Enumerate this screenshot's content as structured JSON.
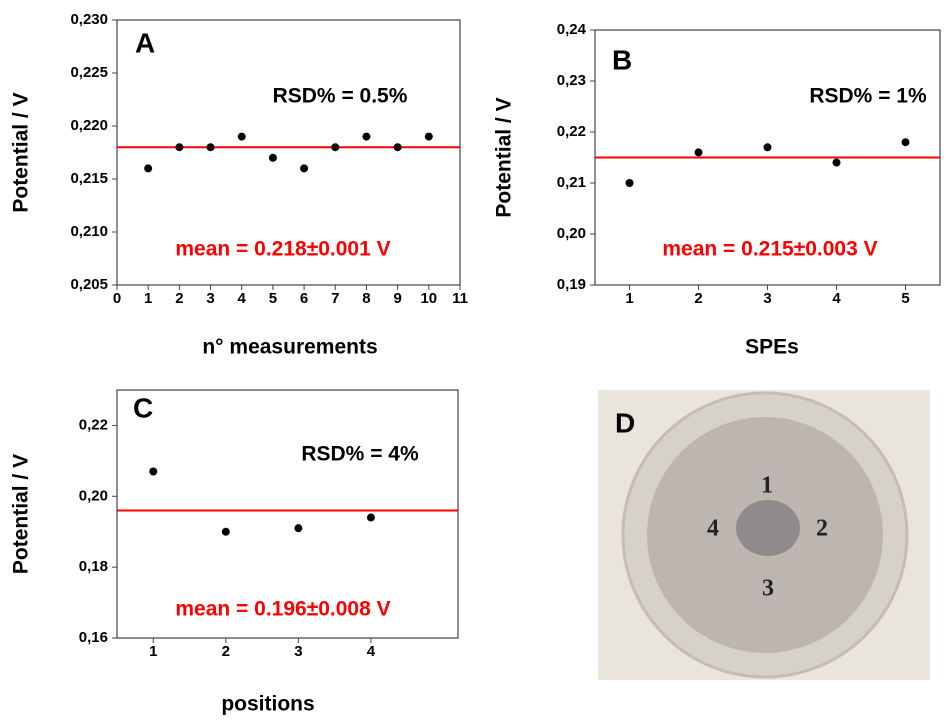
{
  "chart_data": [
    {
      "type": "scatter",
      "panel_label": "A",
      "x_label": "n° measurements",
      "y_label": "Potential / V",
      "x": [
        1,
        2,
        3,
        4,
        5,
        6,
        7,
        8,
        9,
        10
      ],
      "values": [
        0.216,
        0.218,
        0.218,
        0.219,
        0.217,
        0.216,
        0.218,
        0.219,
        0.218,
        0.219
      ],
      "color": "#000000",
      "mean_line": {
        "value": 0.218,
        "color": "#ff0000"
      },
      "annotations": [
        {
          "text": "RSD% = 0.5%",
          "color": "#000000"
        },
        {
          "text": "mean = 0.218±0.001 V",
          "color": "#ff0000"
        }
      ],
      "xlim": [
        0,
        11
      ],
      "xticks": [
        0,
        1,
        2,
        3,
        4,
        5,
        6,
        7,
        8,
        9,
        10,
        11
      ],
      "ylim": [
        0.205,
        0.23
      ],
      "yticks": [
        {
          "value": 0.205,
          "label": "0,205"
        },
        {
          "value": 0.21,
          "label": "0,210"
        },
        {
          "value": 0.215,
          "label": "0,215"
        },
        {
          "value": 0.22,
          "label": "0,220"
        },
        {
          "value": 0.225,
          "label": "0,225"
        },
        {
          "value": 0.23,
          "label": "0,230"
        }
      ]
    },
    {
      "type": "scatter",
      "panel_label": "B",
      "x_label": "SPEs",
      "y_label": "Potential / V",
      "x": [
        1,
        2,
        3,
        4,
        5
      ],
      "values": [
        0.21,
        0.216,
        0.217,
        0.214,
        0.218
      ],
      "color": "#000000",
      "mean_line": {
        "value": 0.215,
        "color": "#ff0000"
      },
      "annotations": [
        {
          "text": "RSD% = 1%",
          "color": "#000000"
        },
        {
          "text": "mean = 0.215±0.003 V",
          "color": "#ff0000"
        }
      ],
      "xlim": [
        0.5,
        5.5
      ],
      "xticks": [
        1,
        2,
        3,
        4,
        5
      ],
      "ylim": [
        0.19,
        0.24
      ],
      "yticks": [
        {
          "value": 0.19,
          "label": "0,19"
        },
        {
          "value": 0.2,
          "label": "0,20"
        },
        {
          "value": 0.21,
          "label": "0,21"
        },
        {
          "value": 0.22,
          "label": "0,22"
        },
        {
          "value": 0.23,
          "label": "0,23"
        },
        {
          "value": 0.24,
          "label": "0,24"
        }
      ]
    },
    {
      "type": "scatter",
      "panel_label": "C",
      "x_label": "positions",
      "y_label": "Potential / V",
      "x": [
        1,
        2,
        3,
        4
      ],
      "values": [
        0.207,
        0.19,
        0.191,
        0.194
      ],
      "color": "#000000",
      "mean_line": {
        "value": 0.196,
        "color": "#ff0000"
      },
      "annotations": [
        {
          "text": "RSD% = 4%",
          "color": "#000000"
        },
        {
          "text": "mean = 0.196±0.008 V",
          "color": "#ff0000"
        }
      ],
      "xlim": [
        0.5,
        5.2
      ],
      "xticks": [
        1,
        2,
        3,
        4
      ],
      "ylim": [
        0.16,
        0.23
      ],
      "yticks": [
        {
          "value": 0.16,
          "label": "0,16"
        },
        {
          "value": 0.18,
          "label": "0,18"
        },
        {
          "value": 0.2,
          "label": "0,20"
        },
        {
          "value": 0.22,
          "label": "0,22"
        }
      ]
    }
  ],
  "photo": {
    "panel_label": "D",
    "positions": [
      "1",
      "2",
      "3",
      "4"
    ]
  }
}
